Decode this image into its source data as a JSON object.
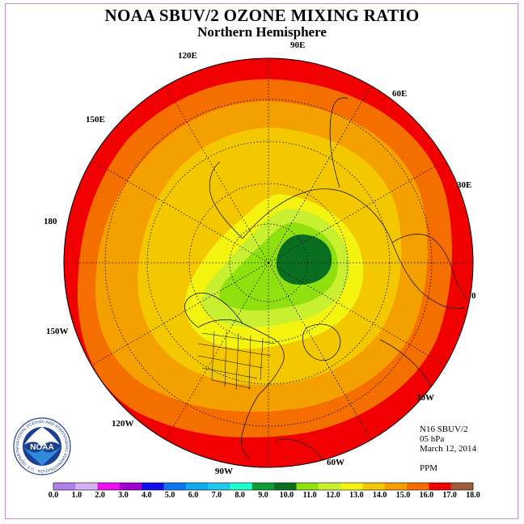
{
  "title": "NOAA SBUV/2 OZONE MIXING RATIO",
  "subtitle": "Northern Hemisphere",
  "longitude_labels": {
    "e90": "90E",
    "e120": "120E",
    "e60": "60E",
    "e150": "150E",
    "e30": "30E",
    "l180": "180",
    "l0": "0",
    "w150": "150W",
    "w30": "30W",
    "w120": "120W",
    "w60": "60W",
    "w90": "90W"
  },
  "info": {
    "instrument": "N16 SBUV/2",
    "level": "05 hPa",
    "date": "March 12, 2014",
    "units": "PPM"
  },
  "colorbar": {
    "colors": [
      "#b07fe8",
      "#d6b0f0",
      "#ee10ee",
      "#a000d0",
      "#1010ee",
      "#1078ee",
      "#10a8ee",
      "#20c8ee",
      "#20ffd0",
      "#109a38",
      "#0a6e20",
      "#90e010",
      "#c8f030",
      "#f4f410",
      "#f4c800",
      "#f4a000",
      "#f46e00",
      "#f00000",
      "#a05a3c"
    ],
    "labels": [
      "0.0",
      "1.0",
      "2.0",
      "3.0",
      "4.0",
      "5.0",
      "6.0",
      "7.0",
      "8.0",
      "9.0",
      "10.0",
      "11.0",
      "12.0",
      "13.0",
      "14.0",
      "15.0",
      "16.0",
      "17.0",
      "18.0"
    ]
  },
  "logo": {
    "text": "NOAA",
    "ring_text": "NATIONAL OCEANIC AND ATMOSPHERIC ADMINISTRATION · U.S. DEPARTMENT OF COMMERCE"
  },
  "colors": {
    "outer_ring": "#f00000",
    "band_16_17": "#f46e00",
    "band_15_16": "#f4a000",
    "band_14_15": "#f4c800",
    "band_13_14": "#f4f410",
    "band_12_13": "#c8f030",
    "band_11_12": "#90e010",
    "band_10_11": "#0a6e20",
    "frame": "#cc88dd"
  }
}
